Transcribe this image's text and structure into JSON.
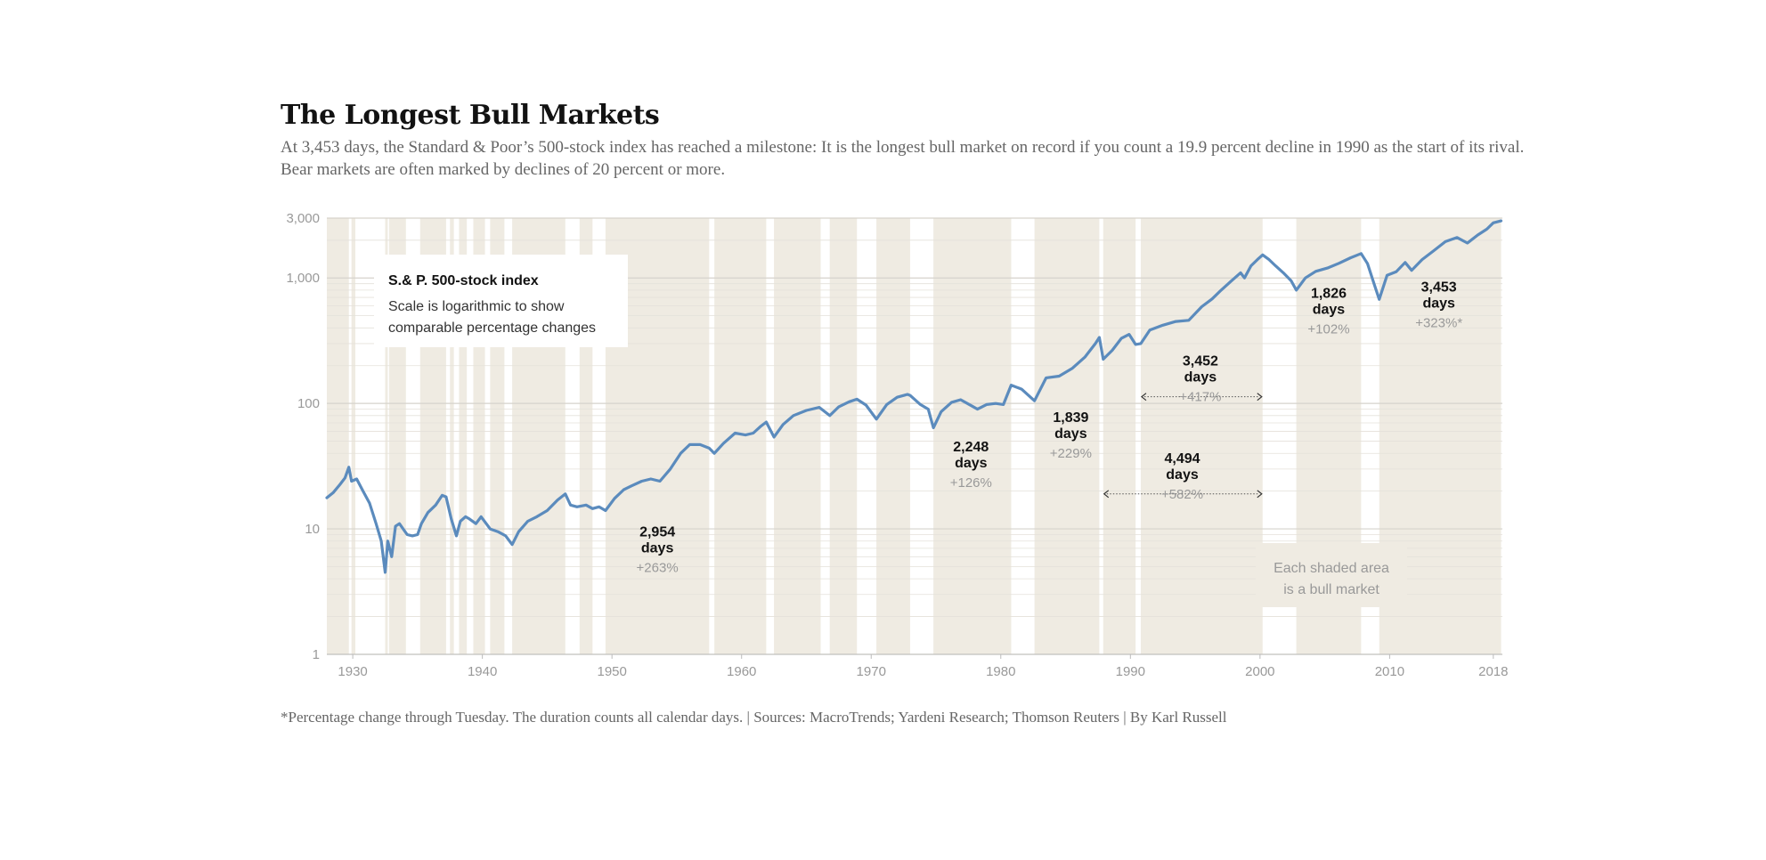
{
  "header": {
    "title": "The Longest Bull Markets",
    "subtitle": "At 3,453 days, the Standard & Poor’s 500-stock index has reached a milestone: It is the longest bull market on record if you count a 19.9 percent decline in 1990 as the start of its rival. Bear markets are often marked by declines of 20 percent or more."
  },
  "footer": {
    "note": "*Percentage change through Tuesday. The duration counts all calendar days. | Sources: MacroTrends; Yardeni Research; Thomson Reuters | By Karl Russell"
  },
  "colors": {
    "line": "#5b8bbd",
    "shade": "#efebe2",
    "gridline": "#d6d3cc",
    "text_dark": "#121212",
    "text_muted": "#999999"
  },
  "chart_data": {
    "type": "line",
    "title": "S.& P. 500-stock index",
    "note": "Scale is logarithmic to show comparable percentage changes",
    "shade_note": [
      "Each shaded area",
      "is a bull market"
    ],
    "y_scale": "log",
    "xlim": [
      1928.0,
      2018.7
    ],
    "ylim": [
      1,
      3000
    ],
    "x_ticks": [
      {
        "value": 1930,
        "label": "1930"
      },
      {
        "value": 1940,
        "label": "1940"
      },
      {
        "value": 1950,
        "label": "1950"
      },
      {
        "value": 1960,
        "label": "1960"
      },
      {
        "value": 1970,
        "label": "1970"
      },
      {
        "value": 1980,
        "label": "1980"
      },
      {
        "value": 1990,
        "label": "1990"
      },
      {
        "value": 2000,
        "label": "2000"
      },
      {
        "value": 2010,
        "label": "2010"
      },
      {
        "value": 2018,
        "label": "2018"
      }
    ],
    "y_ticks": [
      {
        "value": 1,
        "label": "1"
      },
      {
        "value": 10,
        "label": "10"
      },
      {
        "value": 100,
        "label": "100"
      },
      {
        "value": 1000,
        "label": "1,000"
      },
      {
        "value": 3000,
        "label": "3,000"
      }
    ],
    "bull_markets": [
      [
        1928.0,
        1929.7
      ],
      [
        1929.9,
        1930.2
      ],
      [
        1932.5,
        1932.7
      ],
      [
        1932.8,
        1934.1
      ],
      [
        1935.2,
        1937.2
      ],
      [
        1937.5,
        1937.8
      ],
      [
        1938.2,
        1938.8
      ],
      [
        1939.3,
        1940.2
      ],
      [
        1940.6,
        1941.7
      ],
      [
        1942.3,
        1946.4
      ],
      [
        1947.5,
        1948.5
      ],
      [
        1949.5,
        1957.5
      ],
      [
        1957.9,
        1961.9
      ],
      [
        1962.5,
        1966.1
      ],
      [
        1966.8,
        1968.9
      ],
      [
        1970.4,
        1973.0
      ],
      [
        1974.8,
        1980.8
      ],
      [
        1982.6,
        1987.6
      ],
      [
        1987.9,
        1990.4
      ],
      [
        1990.8,
        2000.2
      ],
      [
        2002.8,
        2007.8
      ],
      [
        2009.2,
        2018.6
      ]
    ],
    "series": [
      {
        "name": "S.& P. 500-stock index",
        "x": [
          1928.0,
          1928.5,
          1929.0,
          1929.4,
          1929.7,
          1929.9,
          1930.3,
          1930.8,
          1931.3,
          1931.8,
          1932.2,
          1932.5,
          1932.7,
          1933.0,
          1933.3,
          1933.6,
          1934.2,
          1934.6,
          1935.0,
          1935.3,
          1935.8,
          1936.4,
          1936.9,
          1937.2,
          1937.6,
          1938.0,
          1938.3,
          1938.7,
          1939.0,
          1939.5,
          1939.9,
          1940.3,
          1940.6,
          1941.2,
          1941.8,
          1942.3,
          1942.8,
          1943.5,
          1944.2,
          1945.0,
          1945.8,
          1946.4,
          1946.8,
          1947.3,
          1948.0,
          1948.5,
          1949.0,
          1949.5,
          1950.2,
          1950.9,
          1951.5,
          1952.3,
          1953.0,
          1953.7,
          1954.5,
          1955.3,
          1956.0,
          1956.8,
          1957.5,
          1957.9,
          1958.6,
          1959.5,
          1960.3,
          1960.9,
          1961.5,
          1961.9,
          1962.5,
          1963.2,
          1964.0,
          1965.0,
          1966.0,
          1966.8,
          1967.5,
          1968.3,
          1968.9,
          1969.6,
          1970.4,
          1971.2,
          1972.0,
          1972.8,
          1973.0,
          1973.8,
          1974.4,
          1974.8,
          1975.4,
          1976.2,
          1976.9,
          1977.8,
          1978.2,
          1978.9,
          1979.6,
          1980.2,
          1980.8,
          1981.6,
          1982.6,
          1983.5,
          1984.5,
          1985.5,
          1986.5,
          1987.3,
          1987.6,
          1987.9,
          1988.6,
          1989.3,
          1989.9,
          1990.4,
          1990.8,
          1991.5,
          1992.5,
          1993.5,
          1994.5,
          1995.5,
          1996.3,
          1997.0,
          1997.8,
          1998.5,
          1998.8,
          1999.3,
          1999.8,
          2000.2,
          2000.7,
          2001.2,
          2001.8,
          2002.4,
          2002.8,
          2003.5,
          2004.3,
          2005.2,
          2006.1,
          2007.0,
          2007.8,
          2008.3,
          2008.8,
          2009.2,
          2009.8,
          2010.5,
          2011.2,
          2011.7,
          2012.5,
          2013.4,
          2014.3,
          2015.2,
          2016.0,
          2016.8,
          2017.5,
          2018.0,
          2018.6
        ],
        "y": [
          17.7,
          19.5,
          22.5,
          25.5,
          31.0,
          24.0,
          25.0,
          20.0,
          16.0,
          11.0,
          8.0,
          4.5,
          8.0,
          6.0,
          10.5,
          11.0,
          9.0,
          8.8,
          9.0,
          11.0,
          13.5,
          15.5,
          18.5,
          18.0,
          12.0,
          8.8,
          11.5,
          12.5,
          12.0,
          11.0,
          12.5,
          11.0,
          10.0,
          9.5,
          8.8,
          7.5,
          9.5,
          11.5,
          12.5,
          14.0,
          17.0,
          19.0,
          15.5,
          15.0,
          15.5,
          14.5,
          15.0,
          14.0,
          17.5,
          20.5,
          22.0,
          24.0,
          25.0,
          24.0,
          30.0,
          40.0,
          47.0,
          47.0,
          44.0,
          40.0,
          48.0,
          58.0,
          56.0,
          58.0,
          66.0,
          71.0,
          54.0,
          68.0,
          80.0,
          88.0,
          93.0,
          80.0,
          94.0,
          103.0,
          108.0,
          97.0,
          75.0,
          98.0,
          112.0,
          118.0,
          116.0,
          98.0,
          90.0,
          64.0,
          86.0,
          102.0,
          107.0,
          95.0,
          90.0,
          98.0,
          100.0,
          98.0,
          140.0,
          130.0,
          105.0,
          160.0,
          165.0,
          190.0,
          235.0,
          300.0,
          336.0,
          225.0,
          265.0,
          330.0,
          355.0,
          295.0,
          300.0,
          385.0,
          420.0,
          450.0,
          460.0,
          590.0,
          680.0,
          800.0,
          950.0,
          1100.0,
          1000.0,
          1250.0,
          1400.0,
          1527.0,
          1400.0,
          1250.0,
          1100.0,
          950.0,
          800.0,
          1000.0,
          1130.0,
          1200.0,
          1310.0,
          1450.0,
          1565.0,
          1300.0,
          900.0,
          676.0,
          1050.0,
          1120.0,
          1330.0,
          1150.0,
          1400.0,
          1650.0,
          1950.0,
          2100.0,
          1900.0,
          2200.0,
          2450.0,
          2750.0,
          2850.0
        ]
      }
    ],
    "bull_labels": [
      {
        "x": 1953.5,
        "y": 6.5,
        "days": "2,954",
        "unit": "days",
        "change": "+263%"
      },
      {
        "x": 1977.7,
        "y": 31.0,
        "days": "2,248",
        "unit": "days",
        "change": "+126%"
      },
      {
        "x": 1985.4,
        "y": 53.0,
        "days": "1,839",
        "unit": "days",
        "change": "+229%"
      },
      {
        "x": 1995.4,
        "y": 150.0,
        "days": "3,452",
        "unit": "days",
        "change": "+417%"
      },
      {
        "x": 1994.0,
        "y": 25.0,
        "days": "4,494",
        "unit": "days",
        "change": "+582%"
      },
      {
        "x": 2005.3,
        "y": 520.0,
        "days": "1,826",
        "unit": "days",
        "change": "+102%"
      },
      {
        "x": 2013.8,
        "y": 580.0,
        "days": "3,453",
        "unit": "days",
        "change": "+323%*"
      }
    ],
    "arrows": [
      {
        "x1": 1990.8,
        "x2": 2000.2,
        "y": 113.0
      },
      {
        "x1": 1987.9,
        "x2": 2000.2,
        "y": 19.0
      }
    ]
  }
}
